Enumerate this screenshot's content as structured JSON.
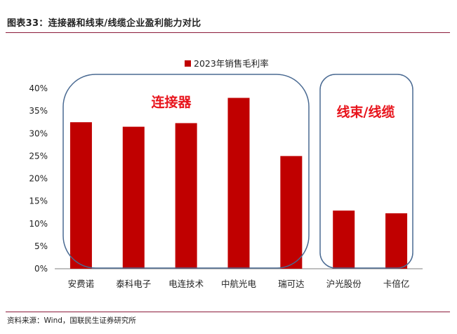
{
  "figure": {
    "title": "图表33：连接器和线束/线缆企业盈利能力对比",
    "source": "资料来源：Wind，国联民生证券研究所"
  },
  "chart_data": {
    "type": "bar",
    "categories": [
      "安费诺",
      "泰科电子",
      "电连技术",
      "中航光电",
      "瑞可达",
      "沪光股份",
      "卡倍亿"
    ],
    "series": [
      {
        "name": "2023年销售毛利率",
        "values": [
          32.5,
          31.5,
          32.3,
          37.9,
          25.0,
          12.9,
          12.3
        ],
        "color": "#c00000"
      }
    ],
    "ylim": [
      0,
      40
    ],
    "yticks": [
      "0%",
      "5%",
      "10%",
      "15%",
      "20%",
      "25%",
      "30%",
      "35%",
      "40%"
    ],
    "grid": false,
    "legend": "top-center",
    "annotations": [
      {
        "text": "连接器",
        "color": "#e8141c"
      },
      {
        "text": "线束/线缆",
        "color": "#e8141c"
      }
    ],
    "group_box_color": "#4a6a92"
  }
}
